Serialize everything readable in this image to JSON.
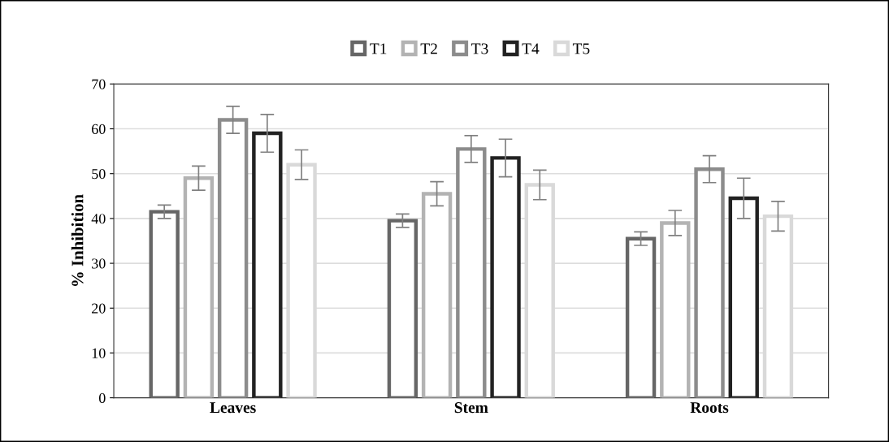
{
  "chart_data": {
    "type": "bar",
    "ylabel": "% Inhibition",
    "categories": [
      "Leaves",
      "Stem",
      "Roots"
    ],
    "series": [
      {
        "name": "T1",
        "color": "#666666",
        "values": [
          41.5,
          39.5,
          35.5
        ],
        "errors": [
          1.5,
          1.5,
          1.5
        ]
      },
      {
        "name": "T2",
        "color": "#b3b3b3",
        "values": [
          49,
          45.5,
          39
        ],
        "errors": [
          2.7,
          2.7,
          2.8
        ]
      },
      {
        "name": "T3",
        "color": "#8c8c8c",
        "values": [
          62,
          55.5,
          51
        ],
        "errors": [
          3,
          3,
          3
        ]
      },
      {
        "name": "T4",
        "color": "#222222",
        "values": [
          59,
          53.5,
          44.5
        ],
        "errors": [
          4.2,
          4.2,
          4.5
        ]
      },
      {
        "name": "T5",
        "color": "#d9d9d9",
        "values": [
          52,
          47.5,
          40.5
        ],
        "errors": [
          3.3,
          3.3,
          3.3
        ]
      }
    ],
    "ylim": [
      0,
      70
    ],
    "yticks": [
      0,
      10,
      20,
      30,
      40,
      50,
      60,
      70
    ],
    "grid": "y",
    "legend": "top"
  }
}
